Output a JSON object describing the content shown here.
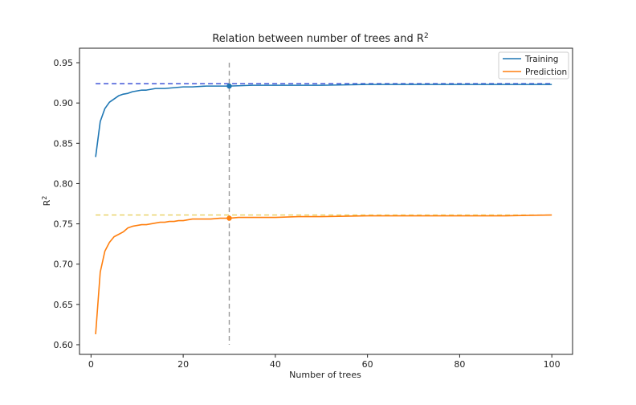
{
  "chart_data": {
    "type": "line",
    "title": "Relation between number of trees and R",
    "title_superscript": "2",
    "xlabel": "Number of trees",
    "ylabel": "R",
    "ylabel_superscript": "2",
    "xlim": [
      -2.5,
      104.5
    ],
    "ylim": [
      0.588,
      0.968
    ],
    "xticks": [
      0,
      20,
      40,
      60,
      80,
      100
    ],
    "yticks": [
      0.6,
      0.65,
      0.7,
      0.75,
      0.8,
      0.85,
      0.9,
      0.95
    ],
    "xtick_labels": [
      "0",
      "20",
      "40",
      "60",
      "80",
      "100"
    ],
    "ytick_labels": [
      "0.60",
      "0.65",
      "0.70",
      "0.75",
      "0.80",
      "0.85",
      "0.90",
      "0.95"
    ],
    "legend": {
      "placement": "top-right",
      "entries": [
        "Training",
        "Prediction"
      ]
    },
    "grid": false,
    "colors": {
      "training": "#1f77b4",
      "prediction": "#ff7f0e",
      "training_ref": "#4056d8",
      "prediction_ref": "#e8d060",
      "vline": "#999999"
    },
    "series": [
      {
        "name": "Training",
        "x": [
          1,
          2,
          3,
          4,
          5,
          6,
          7,
          8,
          9,
          10,
          11,
          12,
          13,
          14,
          15,
          16,
          18,
          20,
          22,
          25,
          28,
          30,
          35,
          40,
          50,
          60,
          70,
          80,
          90,
          100
        ],
        "y": [
          0.833,
          0.877,
          0.893,
          0.901,
          0.905,
          0.909,
          0.911,
          0.912,
          0.914,
          0.915,
          0.916,
          0.916,
          0.917,
          0.918,
          0.918,
          0.918,
          0.919,
          0.92,
          0.92,
          0.921,
          0.921,
          0.921,
          0.922,
          0.922,
          0.922,
          0.923,
          0.923,
          0.923,
          0.923,
          0.923
        ]
      },
      {
        "name": "Prediction",
        "x": [
          1,
          2,
          3,
          4,
          5,
          6,
          7,
          8,
          9,
          10,
          11,
          12,
          13,
          14,
          15,
          16,
          17,
          18,
          19,
          20,
          22,
          24,
          26,
          28,
          30,
          32,
          35,
          40,
          45,
          50,
          60,
          70,
          80,
          90,
          100
        ],
        "y": [
          0.613,
          0.69,
          0.716,
          0.727,
          0.734,
          0.737,
          0.74,
          0.745,
          0.747,
          0.748,
          0.749,
          0.749,
          0.75,
          0.751,
          0.752,
          0.752,
          0.753,
          0.753,
          0.754,
          0.754,
          0.756,
          0.756,
          0.756,
          0.757,
          0.757,
          0.758,
          0.758,
          0.758,
          0.759,
          0.759,
          0.76,
          0.76,
          0.76,
          0.76,
          0.761
        ]
      }
    ],
    "reference_lines": {
      "training_hline": {
        "y": 0.924,
        "x_from": 1,
        "x_to": 100
      },
      "prediction_hline": {
        "y": 0.761,
        "x_from": 1,
        "x_to": 100
      },
      "vline": {
        "x": 30,
        "y_from": 0.6,
        "y_to": 0.95
      }
    },
    "markers": [
      {
        "series": "Training",
        "x": 30,
        "y": 0.921
      },
      {
        "series": "Prediction",
        "x": 30,
        "y": 0.757
      }
    ]
  }
}
